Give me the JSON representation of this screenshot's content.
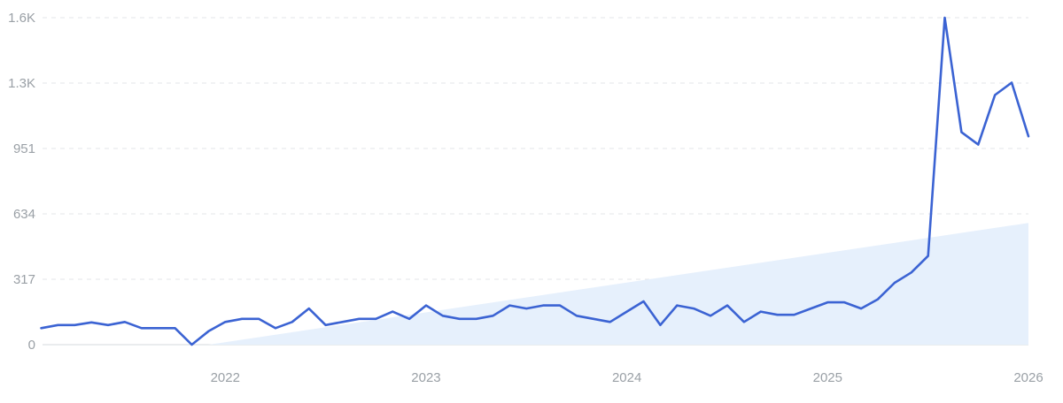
{
  "chart_data": {
    "type": "line",
    "title": "",
    "xlabel": "",
    "ylabel": "",
    "x_ticks": [
      "2022",
      "2023",
      "2024",
      "2025",
      "2026"
    ],
    "x_tick_positions": [
      2022.0,
      2023.0,
      2024.0,
      2025.0,
      2026.0
    ],
    "y_ticks": [
      "0",
      "317",
      "634",
      "951",
      "1.3K",
      "1.6K"
    ],
    "y_tick_values": [
      0,
      317,
      634,
      951,
      1268,
      1585
    ],
    "xlim": [
      2021.09,
      2026.0
    ],
    "ylim": [
      0,
      1585
    ],
    "grid": true,
    "legend": "none",
    "series": [
      {
        "values": [
          {
            "x": "2021-02",
            "y": 80
          },
          {
            "x": "2021-03",
            "y": 95
          },
          {
            "x": "2021-04",
            "y": 95
          },
          {
            "x": "2021-05",
            "y": 108
          },
          {
            "x": "2021-06",
            "y": 95
          },
          {
            "x": "2021-07",
            "y": 110
          },
          {
            "x": "2021-08",
            "y": 80
          },
          {
            "x": "2021-09",
            "y": 80
          },
          {
            "x": "2021-10",
            "y": 80
          },
          {
            "x": "2021-11",
            "y": 0
          },
          {
            "x": "2021-12",
            "y": 65
          },
          {
            "x": "2022-01",
            "y": 110
          },
          {
            "x": "2022-02",
            "y": 125
          },
          {
            "x": "2022-03",
            "y": 125
          },
          {
            "x": "2022-04",
            "y": 80
          },
          {
            "x": "2022-05",
            "y": 110
          },
          {
            "x": "2022-06",
            "y": 175
          },
          {
            "x": "2022-07",
            "y": 95
          },
          {
            "x": "2022-08",
            "y": 110
          },
          {
            "x": "2022-09",
            "y": 125
          },
          {
            "x": "2022-10",
            "y": 125
          },
          {
            "x": "2022-11",
            "y": 160
          },
          {
            "x": "2022-12",
            "y": 125
          },
          {
            "x": "2023-01",
            "y": 190
          },
          {
            "x": "2023-02",
            "y": 140
          },
          {
            "x": "2023-03",
            "y": 125
          },
          {
            "x": "2023-04",
            "y": 125
          },
          {
            "x": "2023-05",
            "y": 140
          },
          {
            "x": "2023-06",
            "y": 190
          },
          {
            "x": "2023-07",
            "y": 175
          },
          {
            "x": "2023-08",
            "y": 190
          },
          {
            "x": "2023-09",
            "y": 190
          },
          {
            "x": "2023-10",
            "y": 140
          },
          {
            "x": "2023-11",
            "y": 125
          },
          {
            "x": "2023-12",
            "y": 110
          },
          {
            "x": "2024-01",
            "y": 160
          },
          {
            "x": "2024-02",
            "y": 210
          },
          {
            "x": "2024-03",
            "y": 95
          },
          {
            "x": "2024-04",
            "y": 190
          },
          {
            "x": "2024-05",
            "y": 175
          },
          {
            "x": "2024-06",
            "y": 140
          },
          {
            "x": "2024-07",
            "y": 190
          },
          {
            "x": "2024-08",
            "y": 110
          },
          {
            "x": "2024-09",
            "y": 160
          },
          {
            "x": "2024-10",
            "y": 145
          },
          {
            "x": "2024-11",
            "y": 145
          },
          {
            "x": "2024-12",
            "y": 175
          },
          {
            "x": "2025-01",
            "y": 205
          },
          {
            "x": "2025-02",
            "y": 205
          },
          {
            "x": "2025-03",
            "y": 175
          },
          {
            "x": "2025-04",
            "y": 220
          },
          {
            "x": "2025-05",
            "y": 300
          },
          {
            "x": "2025-06",
            "y": 350
          },
          {
            "x": "2025-07",
            "y": 430
          },
          {
            "x": "2025-08",
            "y": 1585
          },
          {
            "x": "2025-09",
            "y": 1030
          },
          {
            "x": "2025-10",
            "y": 970
          },
          {
            "x": "2025-11",
            "y": 1210
          },
          {
            "x": "2025-12",
            "y": 1270
          },
          {
            "x": "2026-01",
            "y": 1010
          }
        ]
      }
    ],
    "trend_area": {
      "start": {
        "x": "2021-12",
        "y": 0
      },
      "end": {
        "x": "2026-01",
        "y": 590
      }
    },
    "colors": {
      "line": "#3b63d3",
      "trend_fill": "#e6f0fc",
      "grid": "#e3e6ea",
      "tick_text": "#9aa0a6"
    }
  }
}
